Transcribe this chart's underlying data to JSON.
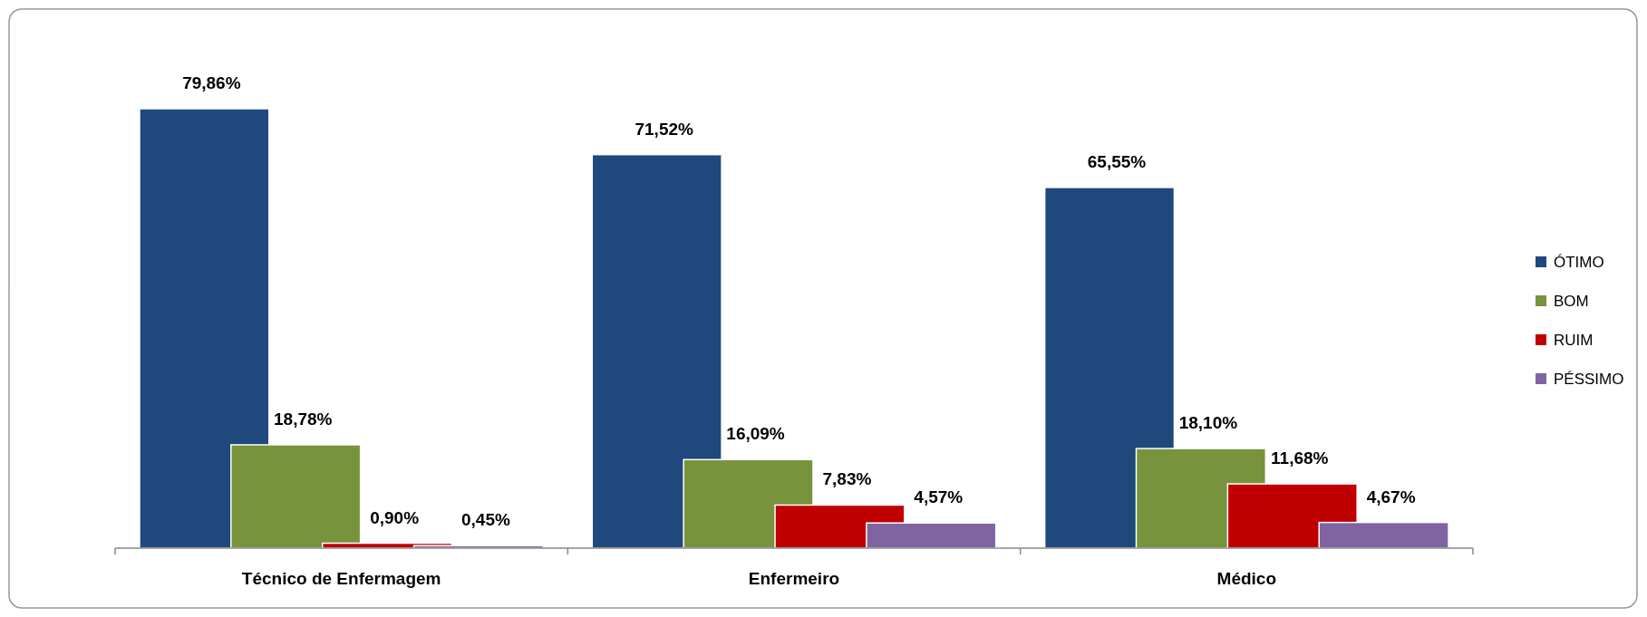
{
  "chart_data": {
    "type": "bar",
    "categories": [
      "Técnico de Enfermagem",
      "Enfermeiro",
      "Médico"
    ],
    "series": [
      {
        "name": "ÓTIMO",
        "color": "#1f497d",
        "values": [
          79.86,
          71.52,
          65.55
        ],
        "value_labels": [
          "79,86%",
          "71,52%",
          "65,55%"
        ]
      },
      {
        "name": "BOM",
        "color": "#77933c",
        "values": [
          18.78,
          16.09,
          18.1
        ],
        "value_labels": [
          "18,78%",
          "16,09%",
          "18,10%"
        ]
      },
      {
        "name": "RUIM",
        "color": "#c00000",
        "values": [
          0.9,
          7.83,
          11.68
        ],
        "value_labels": [
          "0,90%",
          "7,83%",
          "11,68%"
        ]
      },
      {
        "name": "PÉSSIMO",
        "color": "#8064a2",
        "values": [
          0.45,
          4.57,
          4.67
        ],
        "value_labels": [
          "0,45%",
          "4,57%",
          "4,67%"
        ]
      }
    ],
    "legend": "right"
  }
}
